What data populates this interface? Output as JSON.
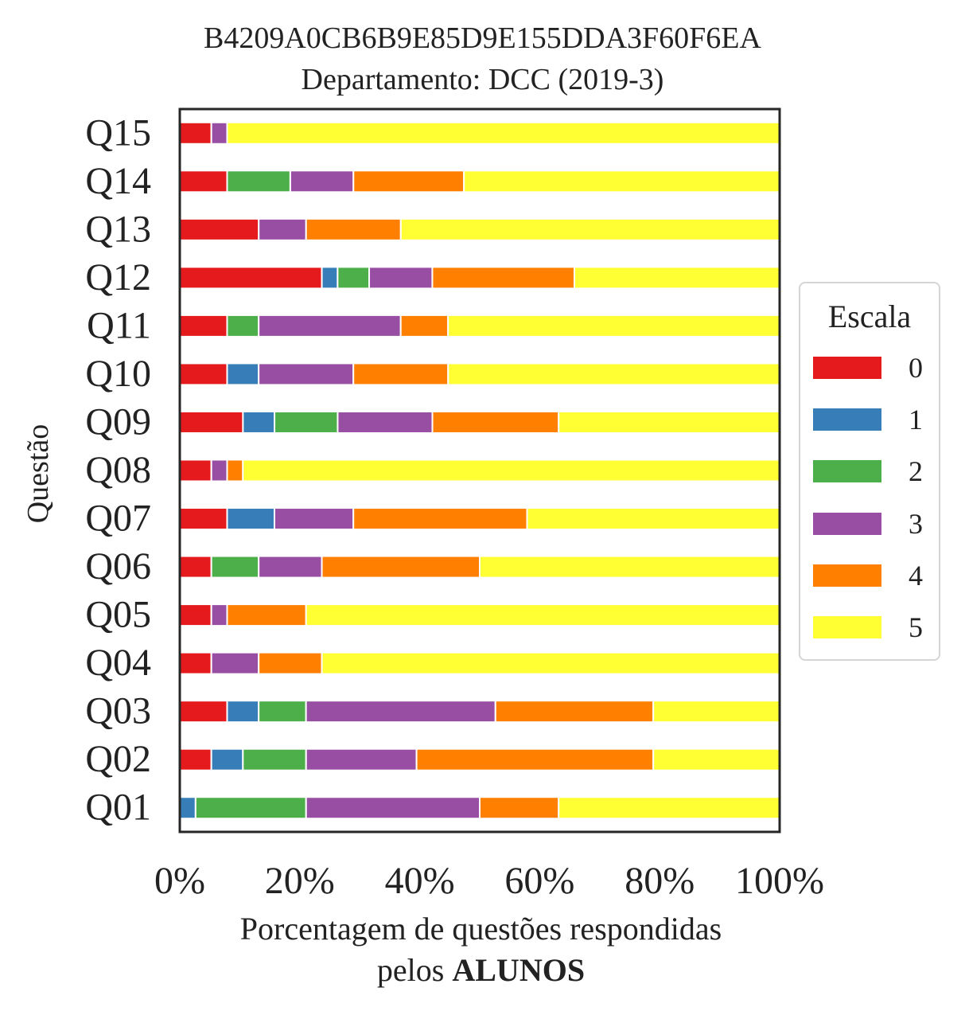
{
  "title": "B4209A0CB6B9E85D9E155DDA3F60F6EA",
  "subtitle": "Departamento: DCC (2019-3)",
  "ylabel": "Questão",
  "xlabel_line1": "Porcentagem de questões respondidas",
  "xlabel_line2_prefix": "pelos ",
  "xlabel_line2_bold": "ALUNOS",
  "legend": {
    "title": "Escala",
    "items": [
      {
        "label": "0",
        "color": "#e41a1c"
      },
      {
        "label": "1",
        "color": "#377eb8"
      },
      {
        "label": "2",
        "color": "#4daf4a"
      },
      {
        "label": "3",
        "color": "#984ea3"
      },
      {
        "label": "4",
        "color": "#ff7f00"
      },
      {
        "label": "5",
        "color": "#ffff33"
      }
    ]
  },
  "chart_data": {
    "type": "bar",
    "orientation": "horizontal",
    "stacked": true,
    "title": "B4209A0CB6B9E85D9E155DDA3F60F6EA",
    "subtitle": "Departamento: DCC (2019-3)",
    "xlabel": "Porcentagem de questões respondidas pelos ALUNOS",
    "ylabel": "Questão",
    "xlim": [
      0,
      100
    ],
    "xticks": [
      "0%",
      "20%",
      "40%",
      "60%",
      "80%",
      "100%"
    ],
    "categories": [
      "Q01",
      "Q02",
      "Q03",
      "Q04",
      "Q05",
      "Q06",
      "Q07",
      "Q08",
      "Q09",
      "Q10",
      "Q11",
      "Q12",
      "Q13",
      "Q14",
      "Q15"
    ],
    "legend_position": "right",
    "series": [
      {
        "name": "0",
        "color": "#e41a1c",
        "values": [
          0,
          5.26,
          7.89,
          5.26,
          5.26,
          5.26,
          7.89,
          5.26,
          10.53,
          7.89,
          7.89,
          23.68,
          13.16,
          7.89,
          5.26
        ]
      },
      {
        "name": "1",
        "color": "#377eb8",
        "values": [
          2.63,
          5.26,
          5.26,
          0,
          0,
          0,
          7.89,
          0,
          5.26,
          5.26,
          0,
          2.63,
          0,
          0,
          0
        ]
      },
      {
        "name": "2",
        "color": "#4daf4a",
        "values": [
          18.42,
          10.53,
          7.89,
          0,
          0,
          7.89,
          0,
          0,
          10.53,
          0,
          5.26,
          5.26,
          0,
          10.53,
          0
        ]
      },
      {
        "name": "3",
        "color": "#984ea3",
        "values": [
          28.95,
          18.42,
          31.58,
          7.89,
          2.63,
          10.53,
          13.16,
          2.63,
          15.79,
          15.79,
          23.68,
          10.53,
          7.89,
          10.53,
          2.63
        ]
      },
      {
        "name": "4",
        "color": "#ff7f00",
        "values": [
          13.16,
          39.47,
          26.32,
          10.53,
          13.16,
          26.32,
          28.95,
          2.63,
          21.05,
          15.79,
          7.89,
          23.68,
          15.79,
          18.42,
          0
        ]
      },
      {
        "name": "5",
        "color": "#ffff33",
        "values": [
          36.84,
          21.05,
          21.05,
          76.32,
          78.95,
          50.0,
          42.11,
          89.47,
          36.84,
          55.26,
          55.26,
          34.21,
          63.16,
          52.63,
          92.11
        ]
      }
    ]
  }
}
